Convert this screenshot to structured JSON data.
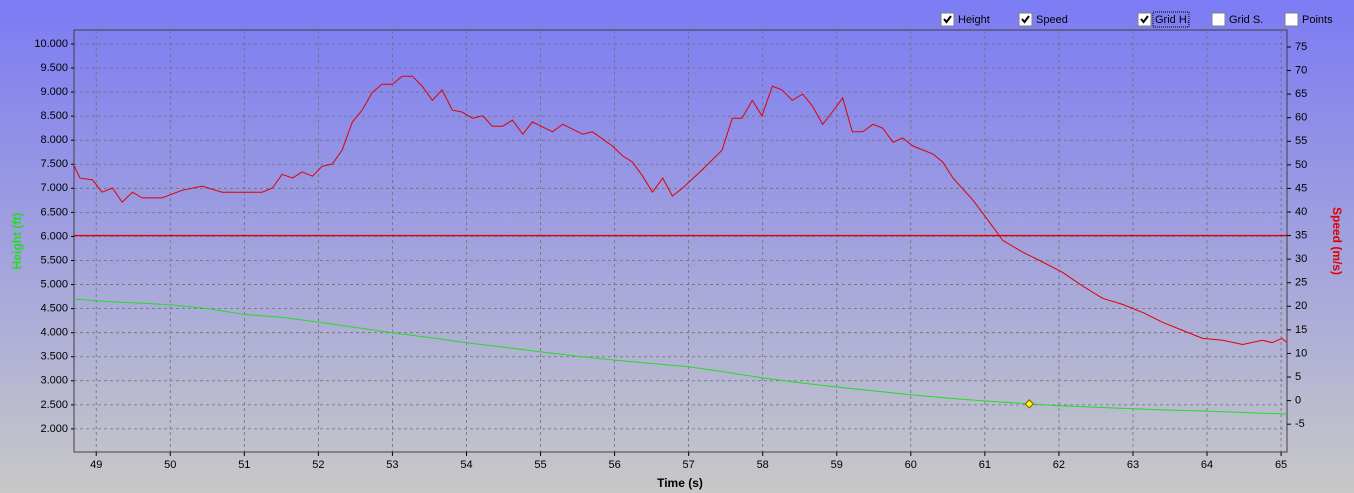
{
  "chart_data": {
    "type": "line",
    "x_label": "Time (s)",
    "y_label": "Height (ft)",
    "y2_label": "Speed (m/s)",
    "xlim": [
      48.7,
      65.08
    ],
    "xticks": [
      49,
      50,
      51,
      52,
      53,
      54,
      55,
      56,
      57,
      58,
      59,
      60,
      61,
      62,
      63,
      64,
      65
    ],
    "ylim": [
      1520,
      10290
    ],
    "yticks": [
      {
        "value": 2000,
        "label": "2.000"
      },
      {
        "value": 2500,
        "label": "2.500"
      },
      {
        "value": 3000,
        "label": "3.000"
      },
      {
        "value": 3500,
        "label": "3.500"
      },
      {
        "value": 4000,
        "label": "4.000"
      },
      {
        "value": 4500,
        "label": "4.500"
      },
      {
        "value": 5000,
        "label": "5.000"
      },
      {
        "value": 5500,
        "label": "5.500"
      },
      {
        "value": 6000,
        "label": "6.000"
      },
      {
        "value": 6500,
        "label": "6.500"
      },
      {
        "value": 7000,
        "label": "7.000"
      },
      {
        "value": 7500,
        "label": "7.500"
      },
      {
        "value": 8000,
        "label": "8.000"
      },
      {
        "value": 8500,
        "label": "8.500"
      },
      {
        "value": 9000,
        "label": "9.000"
      },
      {
        "value": 9500,
        "label": "9.500"
      },
      {
        "value": 10000,
        "label": "10.000"
      }
    ],
    "y2lim": [
      -10.9,
      78.6
    ],
    "y2ticks": [
      -5,
      0,
      5,
      10,
      15,
      20,
      25,
      30,
      35,
      40,
      45,
      50,
      55,
      60,
      65,
      70,
      75
    ],
    "x_grid": true,
    "series": [
      {
        "name": "Height",
        "color": "#22dd22",
        "visible": true,
        "x": [
          48.7,
          49,
          49.5,
          50,
          50.5,
          51,
          51.5,
          52,
          52.5,
          53,
          53.5,
          54,
          54.5,
          55,
          55.5,
          56,
          56.5,
          57,
          57.5,
          58,
          58.5,
          59,
          59.5,
          60,
          60.5,
          61,
          61.5,
          62,
          62.5,
          63,
          63.5,
          64,
          64.5,
          65.08
        ],
        "values": [
          4700,
          4660,
          4620,
          4580,
          4500,
          4380,
          4320,
          4220,
          4110,
          4000,
          3900,
          3790,
          3700,
          3600,
          3510,
          3430,
          3360,
          3290,
          3180,
          3060,
          2960,
          2870,
          2790,
          2710,
          2640,
          2580,
          2530,
          2480,
          2450,
          2420,
          2390,
          2370,
          2340,
          2310
        ]
      },
      {
        "name": "Speed",
        "color": "#e00000",
        "visible": true,
        "axis": "y2",
        "x": [
          48.7,
          48.78,
          48.95,
          49.08,
          49.22,
          49.35,
          49.49,
          49.62,
          49.89,
          50.16,
          50.43,
          50.7,
          51.24,
          51.38,
          51.51,
          51.65,
          51.78,
          51.92,
          52.05,
          52.19,
          52.32,
          52.46,
          52.59,
          52.73,
          52.86,
          53,
          53.13,
          53.27,
          53.4,
          53.54,
          53.67,
          53.81,
          53.94,
          54.08,
          54.22,
          54.35,
          54.49,
          54.62,
          54.76,
          54.89,
          55.16,
          55.3,
          55.57,
          55.7,
          55.97,
          56.11,
          56.24,
          56.38,
          56.51,
          56.65,
          56.78,
          56.92,
          57.18,
          57.45,
          57.59,
          57.72,
          57.86,
          57.99,
          58.13,
          58.26,
          58.4,
          58.54,
          58.67,
          58.81,
          58.94,
          59.08,
          59.21,
          59.35,
          59.49,
          59.62,
          59.76,
          59.89,
          60.03,
          60.3,
          60.43,
          60.57,
          60.84,
          61.1,
          61.24,
          61.51,
          61.78,
          62.05,
          62.32,
          62.59,
          62.86,
          63.13,
          63.4,
          63.67,
          63.94,
          64.21,
          64.48,
          64.75,
          64.88,
          65.01,
          65.08
        ],
        "values": [
          49.9,
          47.2,
          46.8,
          44.2,
          45.1,
          42.1,
          44.2,
          43,
          43,
          44.6,
          45.5,
          44.2,
          44.2,
          45.1,
          48,
          47.2,
          48.5,
          47.6,
          49.7,
          50.2,
          53.1,
          59.1,
          61.6,
          65.4,
          67.1,
          67.1,
          68.8,
          68.8,
          66.7,
          63.7,
          65.9,
          61.6,
          61.2,
          59.9,
          60.4,
          58.2,
          58.2,
          59.5,
          56.5,
          59.1,
          57,
          58.6,
          56.5,
          57,
          54,
          51.9,
          50.6,
          47.6,
          44.2,
          47.2,
          43.4,
          45.1,
          48.9,
          53.1,
          59.9,
          59.9,
          63.7,
          60.4,
          66.7,
          65.9,
          63.7,
          65,
          62.5,
          58.6,
          61.2,
          64.2,
          57,
          57,
          58.6,
          57.8,
          54.8,
          55.7,
          54,
          52.3,
          50.6,
          47.2,
          42.5,
          37,
          34,
          31.5,
          29.4,
          27.2,
          24.3,
          21.7,
          20.4,
          18.7,
          16.6,
          14.9,
          13.2,
          12.8,
          11.9,
          12.8,
          12.3,
          13.2,
          12.3
        ]
      }
    ],
    "reference_line": {
      "axis": "y2",
      "value": 35,
      "color": "#e00000"
    },
    "cursor": {
      "x": 61.6,
      "y": 2520,
      "color": "#ffff00"
    }
  },
  "controls": [
    {
      "label": "Grid H.",
      "checked": true
    },
    {
      "label": "Grid S.",
      "checked": false
    },
    {
      "label": "Points",
      "checked": false
    }
  ]
}
